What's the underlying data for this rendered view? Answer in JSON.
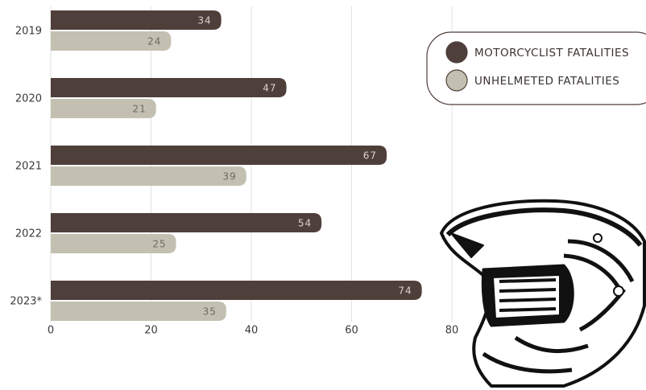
{
  "chart_data": {
    "type": "bar",
    "orientation": "horizontal",
    "categories": [
      "2019",
      "2020",
      "2021",
      "2022",
      "2023*"
    ],
    "series": [
      {
        "name": "MOTORCYCLIST FATALITIES",
        "color": "#4f3f3a",
        "values": [
          34,
          47,
          67,
          54,
          74
        ]
      },
      {
        "name": "UNHELMETED FATALITIES",
        "color": "#c3c0b1",
        "values": [
          24,
          21,
          39,
          25,
          35
        ]
      }
    ],
    "xlim": [
      0,
      80
    ],
    "xticks": [
      0,
      20,
      40,
      60,
      80
    ],
    "grid": true,
    "legend": "top-right"
  }
}
